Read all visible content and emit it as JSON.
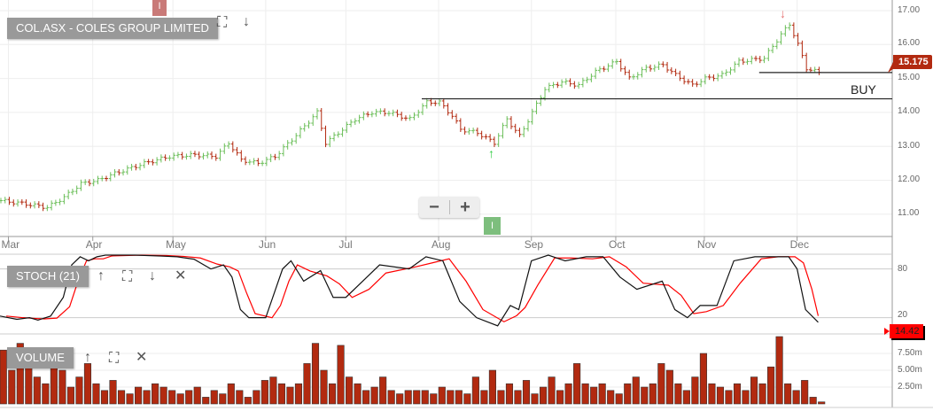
{
  "header": {
    "title": "COL.ASX - COLES GROUP LIMITED"
  },
  "stoch": {
    "label": "STOCH (21)",
    "flag": "14.42",
    "ticks": [
      "80",
      "20"
    ]
  },
  "volume": {
    "label": "VOLUME",
    "ticks": [
      "7.50m",
      "5.00m",
      "2.50m"
    ]
  },
  "price": {
    "flag": "15.175",
    "buy_label": "BUY",
    "ticks": [
      "17.00",
      "16.00",
      "15.00",
      "14.00",
      "13.00",
      "12.00",
      "11.00"
    ]
  },
  "markers": {
    "top_marker": "I",
    "bottom_marker": "I"
  },
  "zoom": {
    "minus": "−",
    "plus": "+"
  },
  "colors": {
    "up": "#6cbf5a",
    "down": "#b22a10",
    "flag": "#b22a10",
    "stoch_flag": "#ff0000",
    "label_bg": "#999999"
  },
  "chart_data": {
    "type": "ohlc",
    "x_unit": "trading day",
    "months": [
      [
        "Mar",
        2
      ],
      [
        "Apr",
        22
      ],
      [
        "May",
        41
      ],
      [
        "Jun",
        63
      ],
      [
        "Jul",
        82
      ],
      [
        "Aug",
        104
      ],
      [
        "Sep",
        126
      ],
      [
        "Oct",
        146
      ],
      [
        "Nov",
        167
      ],
      [
        "Dec",
        189
      ]
    ],
    "price": {
      "ylim": [
        10.4,
        17.3
      ],
      "days": [
        0,
        6,
        11,
        15,
        19,
        23,
        27,
        34,
        40,
        46,
        51,
        54,
        57,
        61,
        65,
        69,
        72,
        75,
        77,
        80,
        84,
        88,
        92,
        97,
        101,
        104,
        107,
        109,
        113,
        117,
        120,
        123,
        126,
        129,
        133,
        137,
        141,
        146,
        149,
        153,
        157,
        160,
        164,
        167,
        171,
        175,
        181,
        185,
        187,
        189,
        191,
        194
      ],
      "close": [
        11.4,
        11.3,
        11.2,
        11.5,
        11.9,
        12.0,
        12.2,
        12.5,
        12.7,
        12.75,
        12.7,
        13.1,
        12.6,
        12.5,
        12.7,
        13.2,
        13.6,
        14.0,
        13.1,
        13.4,
        13.8,
        14.0,
        14.0,
        13.8,
        14.3,
        14.3,
        13.9,
        13.5,
        13.4,
        13.1,
        13.8,
        13.3,
        14.0,
        14.7,
        14.9,
        14.8,
        15.2,
        15.5,
        15.0,
        15.3,
        15.4,
        15.1,
        14.8,
        15.0,
        15.1,
        15.5,
        15.6,
        16.3,
        16.6,
        16.0,
        15.3,
        15.175
      ],
      "last": 15.175,
      "buy_level": 14.4,
      "buy_start_day": 100,
      "last_line_start_day": 180
    },
    "stochastic": {
      "period": 21,
      "levels": [
        80,
        20
      ],
      "days": [
        0,
        4,
        7,
        9,
        12,
        15,
        17,
        19,
        21,
        23,
        25,
        32,
        38,
        42,
        46,
        50,
        53,
        55,
        57,
        59,
        63,
        65,
        67,
        69,
        72,
        76,
        79,
        82,
        86,
        90,
        97,
        101,
        105,
        109,
        113,
        118,
        121,
        123,
        126,
        130,
        134,
        139,
        143,
        147,
        151,
        157,
        160,
        163,
        166,
        170,
        174,
        179,
        183,
        187,
        189,
        191,
        194
      ],
      "k": [
        22,
        18,
        20,
        17,
        22,
        45,
        85,
        95,
        90,
        95,
        97,
        97,
        96,
        95,
        92,
        80,
        85,
        70,
        30,
        20,
        20,
        50,
        80,
        90,
        65,
        78,
        45,
        45,
        65,
        85,
        80,
        95,
        90,
        40,
        20,
        10,
        35,
        30,
        90,
        97,
        90,
        95,
        95,
        70,
        55,
        65,
        30,
        20,
        35,
        35,
        90,
        95,
        95,
        95,
        80,
        30,
        14.42
      ]
    },
    "volume": {
      "unit": "m",
      "day_step": 2,
      "values": [
        8,
        5,
        9,
        6,
        4,
        3,
        7,
        5,
        2.5,
        4,
        6,
        3,
        2,
        3.5,
        2,
        1.5,
        2.5,
        2,
        3,
        2.5,
        2,
        1.5,
        2,
        2.5,
        1,
        2,
        1.5,
        3,
        2,
        1,
        2,
        3.5,
        4,
        3,
        2.5,
        3,
        6,
        9,
        5,
        3,
        8.7,
        4,
        3,
        2,
        2.5,
        4,
        2,
        1.5,
        2,
        2,
        2,
        1.5,
        2.5,
        2,
        2,
        1.5,
        4,
        2,
        5,
        2,
        3,
        2,
        3.5,
        1.5,
        2.5,
        4,
        2,
        3,
        6,
        3,
        2.5,
        3,
        2,
        1.5,
        3,
        4,
        2.5,
        3,
        6,
        5,
        3,
        2,
        4,
        7.5,
        3,
        2.5,
        2,
        3,
        2,
        4,
        3,
        5.5,
        10,
        3,
        2,
        3.5,
        1,
        0.3
      ]
    }
  }
}
